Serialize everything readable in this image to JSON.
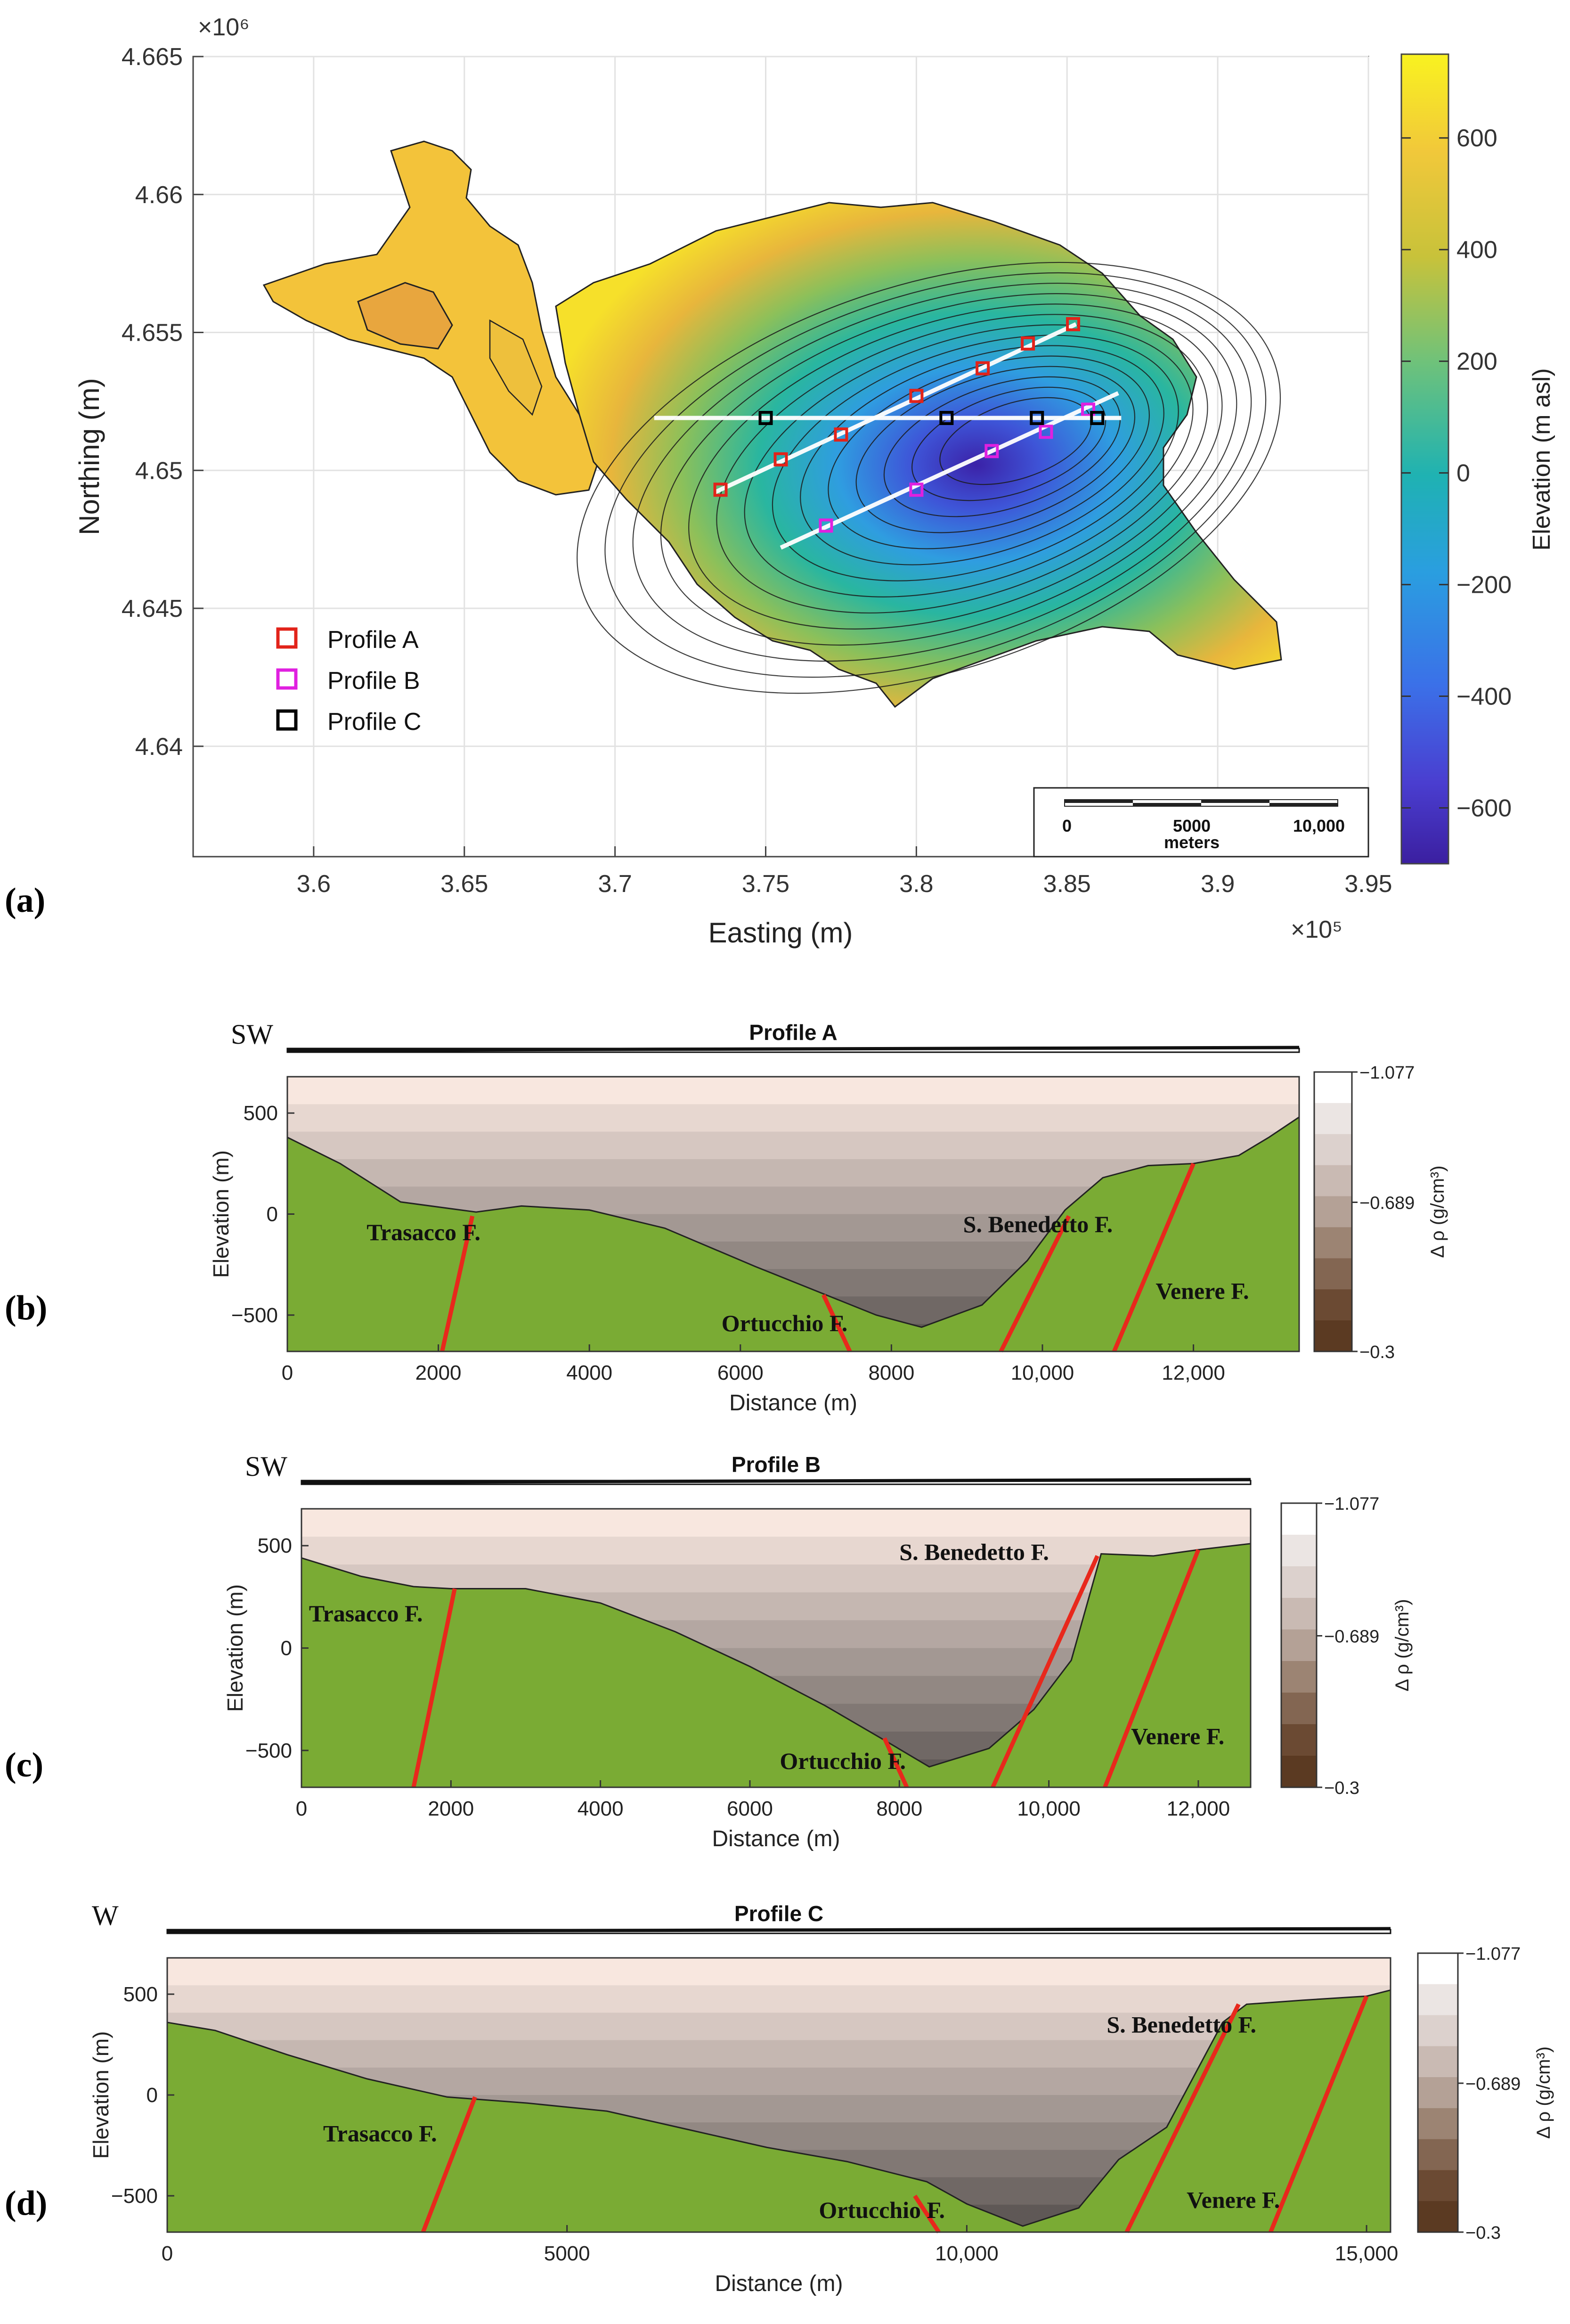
{
  "panels": {
    "a": "(a)",
    "b": "(b)",
    "c": "(c)",
    "d": "(d)"
  },
  "colors": {
    "profile_a": "#e2231a",
    "profile_b": "#e020e0",
    "profile_c": "#000000",
    "bedrock": "#7aab34",
    "fault": "#e8281c"
  },
  "chart_data": [
    {
      "type": "contour",
      "id": "map",
      "xlabel": "Easting (m)",
      "ylabel": "Northing (m)",
      "x_exponent": "×10⁵",
      "y_exponent": "×10⁶",
      "xlim": [
        3.56,
        3.95
      ],
      "ylim": [
        4.636,
        4.665
      ],
      "x_ticks": [
        "3.6",
        "3.65",
        "3.7",
        "3.75",
        "3.8",
        "3.85",
        "3.9",
        "3.95"
      ],
      "x_tick_values": [
        3.6,
        3.65,
        3.7,
        3.75,
        3.8,
        3.85,
        3.9,
        3.95
      ],
      "y_ticks": [
        "4.64",
        "4.645",
        "4.65",
        "4.655",
        "4.66",
        "4.665"
      ],
      "y_tick_values": [
        4.64,
        4.645,
        4.65,
        4.655,
        4.66,
        4.665
      ],
      "grid": true,
      "colorbar": {
        "label": "Elevation (m asl)",
        "ticks": [
          "600",
          "400",
          "200",
          "0",
          "−200",
          "−400",
          "−600"
        ],
        "tick_values": [
          600,
          400,
          200,
          0,
          -200,
          -400,
          -600
        ],
        "range": [
          -700,
          750
        ]
      },
      "legend": {
        "position": "bottom-left",
        "entries": [
          "Profile A",
          "Profile B",
          "Profile C"
        ]
      },
      "scalebar": {
        "ticks": [
          "0",
          "5000",
          "10,000"
        ],
        "unit": "meters"
      },
      "profiles": [
        {
          "name": "Profile A",
          "start": [
            3.733,
            4.6492
          ],
          "end": [
            3.853,
            4.6553
          ],
          "markers": [
            [
              3.735,
              4.6493
            ],
            [
              3.755,
              4.6504
            ],
            [
              3.775,
              4.6513
            ],
            [
              3.8,
              4.6527
            ],
            [
              3.822,
              4.6537
            ],
            [
              3.837,
              4.6546
            ],
            [
              3.852,
              4.6553
            ]
          ]
        },
        {
          "name": "Profile B",
          "start": [
            3.755,
            4.6472
          ],
          "end": [
            3.867,
            4.6528
          ],
          "markers": [
            [
              3.77,
              4.648
            ],
            [
              3.8,
              4.6493
            ],
            [
              3.825,
              4.6507
            ],
            [
              3.843,
              4.6514
            ],
            [
              3.857,
              4.6522
            ]
          ]
        },
        {
          "name": "Profile C",
          "start": [
            3.713,
            4.6519
          ],
          "end": [
            3.868,
            4.6519
          ],
          "markers": [
            [
              3.75,
              4.6519
            ],
            [
              3.81,
              4.6519
            ],
            [
              3.84,
              4.6519
            ],
            [
              3.86,
              4.6519
            ]
          ]
        }
      ]
    },
    {
      "type": "area",
      "id": "profileA",
      "title": "Profile A",
      "direction": "SW",
      "xlabel": "Distance (m)",
      "ylabel": "Elevation (m)",
      "xlim": [
        0,
        13400
      ],
      "ylim": [
        -680,
        680
      ],
      "x_ticks": [
        "0",
        "2000",
        "4000",
        "6000",
        "8000",
        "10,000",
        "12,000"
      ],
      "x_tick_values": [
        0,
        2000,
        4000,
        6000,
        8000,
        10000,
        12000
      ],
      "y_ticks": [
        "500",
        "0",
        "−500"
      ],
      "y_tick_values": [
        500,
        0,
        -500
      ],
      "colorbar": {
        "label": "Δ ρ (g/cm³)",
        "ticks": [
          "−1.077",
          "−0.689",
          "−0.3"
        ],
        "tick_values": [
          -1.077,
          -0.689,
          -0.3
        ]
      },
      "surface": {
        "x": [
          0,
          700,
          1500,
          2500,
          3100,
          4000,
          5000,
          6200,
          7000,
          7800,
          8400,
          9200,
          9800,
          10300,
          10800,
          11400,
          12000,
          12600,
          13000,
          13400
        ],
        "y": [
          380,
          250,
          60,
          10,
          40,
          20,
          -70,
          -260,
          -380,
          -500,
          -560,
          -450,
          -230,
          20,
          180,
          240,
          250,
          290,
          380,
          480
        ]
      },
      "faults": [
        {
          "name": "Trasacco F.",
          "top": [
            2450,
            -10
          ],
          "bottom": [
            2050,
            -680
          ],
          "label_at": [
            1050,
            -130
          ]
        },
        {
          "name": "Ortucchio F.",
          "top": [
            7100,
            -400
          ],
          "bottom": [
            7450,
            -680
          ],
          "label_at": [
            5750,
            -580
          ]
        },
        {
          "name": "S. Benedetto F.",
          "top": [
            10350,
            -10
          ],
          "bottom": [
            9450,
            -680
          ],
          "label_at": [
            8950,
            -90
          ]
        },
        {
          "name": "Venere F.",
          "top": [
            12000,
            250
          ],
          "bottom": [
            10950,
            -680
          ],
          "label_at": [
            11500,
            -420
          ]
        }
      ]
    },
    {
      "type": "area",
      "id": "profileB",
      "title": "Profile B",
      "direction": "SW",
      "xlabel": "Distance (m)",
      "ylabel": "Elevation (m)",
      "xlim": [
        0,
        12700
      ],
      "ylim": [
        -680,
        680
      ],
      "x_ticks": [
        "0",
        "2000",
        "4000",
        "6000",
        "8000",
        "10,000",
        "12,000"
      ],
      "x_tick_values": [
        0,
        2000,
        4000,
        6000,
        8000,
        10000,
        12000
      ],
      "y_ticks": [
        "500",
        "0",
        "−500"
      ],
      "y_tick_values": [
        500,
        0,
        -500
      ],
      "colorbar": {
        "label": "Δ ρ (g/cm³)",
        "ticks": [
          "−1.077",
          "−0.689",
          "−0.3"
        ],
        "tick_values": [
          -1.077,
          -0.689,
          -0.3
        ]
      },
      "surface": {
        "x": [
          0,
          800,
          1500,
          2000,
          3000,
          4000,
          5000,
          6000,
          7000,
          7800,
          8400,
          9200,
          9800,
          10300,
          10700,
          11400,
          12000,
          12700
        ],
        "y": [
          440,
          350,
          300,
          290,
          290,
          220,
          80,
          -90,
          -280,
          -450,
          -580,
          -490,
          -300,
          -60,
          460,
          450,
          480,
          510
        ]
      },
      "faults": [
        {
          "name": "Trasacco F.",
          "top": [
            2050,
            290
          ],
          "bottom": [
            1500,
            -680
          ],
          "label_at": [
            100,
            130
          ]
        },
        {
          "name": "Ortucchio F.",
          "top": [
            7800,
            -440
          ],
          "bottom": [
            8100,
            -680
          ],
          "label_at": [
            6400,
            -590
          ]
        },
        {
          "name": "S. Benedetto F.",
          "top": [
            10650,
            450
          ],
          "bottom": [
            9250,
            -680
          ],
          "label_at": [
            8000,
            430
          ]
        },
        {
          "name": "Venere F.",
          "top": [
            12000,
            480
          ],
          "bottom": [
            10750,
            -680
          ],
          "label_at": [
            11100,
            -470
          ]
        }
      ]
    },
    {
      "type": "area",
      "id": "profileC",
      "title": "Profile C",
      "direction": "W",
      "xlabel": "Distance (m)",
      "ylabel": "Elevation (m)",
      "xlim": [
        0,
        15300
      ],
      "ylim": [
        -680,
        680
      ],
      "x_ticks": [
        "0",
        "5000",
        "10,000",
        "15,000"
      ],
      "x_tick_values": [
        0,
        5000,
        10000,
        15000
      ],
      "y_ticks": [
        "500",
        "0",
        "−500"
      ],
      "y_tick_values": [
        500,
        0,
        -500
      ],
      "colorbar": {
        "label": "Δ ρ (g/cm³)",
        "ticks": [
          "−1.077",
          "−0.689",
          "−0.3"
        ],
        "tick_values": [
          -1.077,
          -0.689,
          -0.3
        ]
      },
      "surface": {
        "x": [
          0,
          600,
          1500,
          2500,
          3500,
          4500,
          5500,
          6500,
          7500,
          8500,
          9500,
          10000,
          10700,
          11400,
          11900,
          12500,
          13200,
          13500,
          14200,
          15000,
          15300
        ],
        "y": [
          360,
          320,
          200,
          80,
          -10,
          -40,
          -80,
          -170,
          -260,
          -330,
          -430,
          -540,
          -650,
          -560,
          -320,
          -160,
          360,
          450,
          470,
          490,
          520
        ]
      },
      "faults": [
        {
          "name": "Trasacco F.",
          "top": [
            3850,
            -10
          ],
          "bottom": [
            3200,
            -680
          ],
          "label_at": [
            1950,
            -230
          ]
        },
        {
          "name": "Ortucchio F.",
          "top": [
            9350,
            -500
          ],
          "bottom": [
            9650,
            -680
          ],
          "label_at": [
            8150,
            -610
          ]
        },
        {
          "name": "S. Benedetto F.",
          "top": [
            13400,
            450
          ],
          "bottom": [
            12000,
            -680
          ],
          "label_at": [
            11750,
            310
          ]
        },
        {
          "name": "Venere F.",
          "top": [
            15000,
            490
          ],
          "bottom": [
            13800,
            -680
          ],
          "label_at": [
            12750,
            -560
          ]
        }
      ]
    }
  ]
}
